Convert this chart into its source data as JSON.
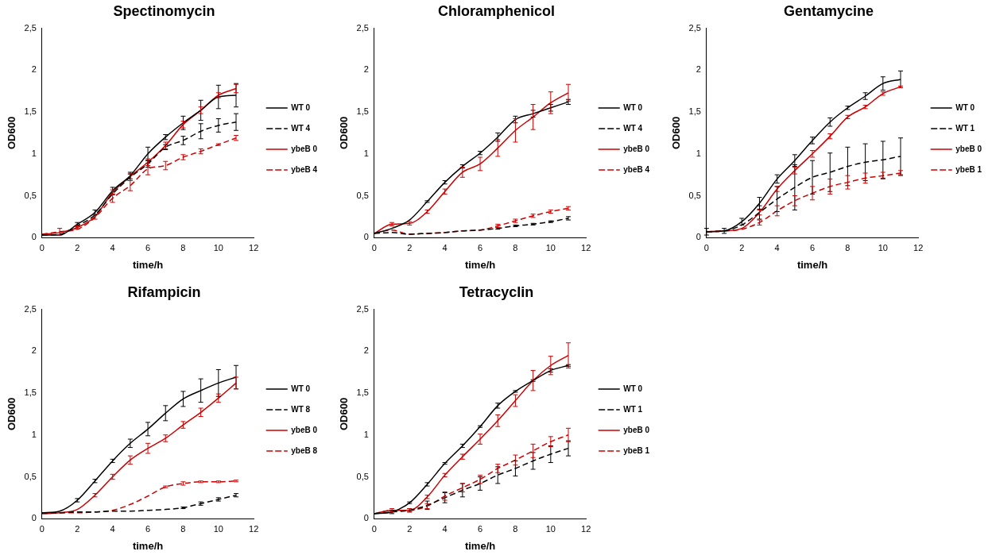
{
  "chart_data": [
    {
      "type": "line",
      "title": "Spectinomycin",
      "xlabel": "time/h",
      "ylabel": "OD600",
      "x": [
        0,
        1,
        2,
        3,
        4,
        5,
        6,
        7,
        8,
        9,
        10,
        11
      ],
      "xlim": [
        0,
        12
      ],
      "xticks": [
        0,
        2,
        4,
        6,
        8,
        10,
        12
      ],
      "ylim": [
        0,
        2.5
      ],
      "yticks": [
        0,
        {
          "value": 0.5,
          "label": "0,5"
        },
        1,
        {
          "value": 1.5,
          "label": "1,5"
        },
        2,
        {
          "value": 2.5,
          "label": "2,5"
        }
      ],
      "legend": "right",
      "grid": false,
      "series": [
        {
          "name": "WT 0",
          "color": "#000000",
          "line_style": "solid",
          "values": [
            0.03,
            0.03,
            0.16,
            0.3,
            0.56,
            0.74,
            1.0,
            1.2,
            1.37,
            1.52,
            1.68,
            1.7
          ],
          "errors": [
            null,
            null,
            0.02,
            0.03,
            0.04,
            0.04,
            0.08,
            0.03,
            0.08,
            0.12,
            0.14,
            0.14
          ]
        },
        {
          "name": "WT 4",
          "color": "#000000",
          "line_style": "dashed",
          "values": [
            0.03,
            0.04,
            0.14,
            0.27,
            0.52,
            0.72,
            0.88,
            1.08,
            1.16,
            1.27,
            1.34,
            1.38
          ],
          "errors": [
            null,
            null,
            null,
            null,
            null,
            0.04,
            0.04,
            0.03,
            0.05,
            0.09,
            0.08,
            0.1
          ]
        },
        {
          "name": "ybeB 0",
          "color": "#cc0000",
          "line_style": "solid",
          "values": [
            0.04,
            0.06,
            0.12,
            0.25,
            0.54,
            0.73,
            0.9,
            1.1,
            1.35,
            1.52,
            1.7,
            1.78
          ],
          "errors": [
            null,
            null,
            0.02,
            0.03,
            0.03,
            0.03,
            0.04,
            0.04,
            0.04,
            0.04,
            0.03,
            0.05
          ]
        },
        {
          "name": "ybeB 4",
          "color": "#cc0000",
          "line_style": "dashed",
          "values": [
            0.04,
            0.07,
            0.1,
            0.24,
            0.47,
            0.62,
            0.82,
            0.86,
            0.96,
            1.03,
            1.11,
            1.19
          ],
          "errors": [
            null,
            0.04,
            null,
            null,
            0.05,
            0.06,
            0.07,
            0.05,
            0.03,
            0.03,
            0.01,
            0.03
          ]
        }
      ]
    },
    {
      "type": "line",
      "title": "Chloramphenicol",
      "xlabel": "time/h",
      "ylabel": "OD600",
      "x": [
        0,
        1,
        2,
        3,
        4,
        5,
        6,
        7,
        8,
        9,
        10,
        11
      ],
      "xlim": [
        0,
        12
      ],
      "xticks": [
        0,
        2,
        4,
        6,
        8,
        10,
        12
      ],
      "ylim": [
        0,
        2.5
      ],
      "yticks": [
        0,
        {
          "value": 0.5,
          "label": "0,5"
        },
        1,
        {
          "value": 1.5,
          "label": "1,5"
        },
        2,
        {
          "value": 2.5,
          "label": "2,5"
        }
      ],
      "legend": "right",
      "grid": false,
      "series": [
        {
          "name": "WT 0",
          "color": "#000000",
          "line_style": "solid",
          "values": [
            0.05,
            0.11,
            0.21,
            0.43,
            0.66,
            0.85,
            1.01,
            1.2,
            1.41,
            1.48,
            1.55,
            1.62
          ],
          "errors": [
            null,
            null,
            null,
            0.01,
            0.02,
            0.02,
            0.02,
            0.05,
            0.04,
            0.04,
            0.04,
            0.03
          ]
        },
        {
          "name": "WT 4",
          "color": "#000000",
          "line_style": "dashed",
          "values": [
            0.05,
            0.06,
            0.04,
            0.05,
            0.06,
            0.08,
            0.09,
            0.11,
            0.14,
            0.16,
            0.19,
            0.23
          ],
          "errors": [
            null,
            null,
            null,
            null,
            null,
            null,
            null,
            0.01,
            0.01,
            0.01,
            0.01,
            0.02
          ]
        },
        {
          "name": "ybeB 0",
          "color": "#cc0000",
          "line_style": "solid",
          "values": [
            0.05,
            0.16,
            0.17,
            0.31,
            0.55,
            0.78,
            0.88,
            1.07,
            1.28,
            1.44,
            1.61,
            1.73
          ],
          "errors": [
            null,
            0.02,
            0.02,
            0.02,
            0.03,
            0.06,
            0.08,
            0.1,
            0.14,
            0.15,
            0.13,
            0.1
          ]
        },
        {
          "name": "ybeB 4",
          "color": "#cc0000",
          "line_style": "dashed",
          "values": [
            0.05,
            0.09,
            0.04,
            0.05,
            0.06,
            0.08,
            0.09,
            0.14,
            0.2,
            0.26,
            0.31,
            0.35
          ],
          "errors": [
            null,
            null,
            null,
            null,
            null,
            null,
            null,
            0.02,
            0.02,
            0.02,
            0.02,
            0.02
          ]
        }
      ]
    },
    {
      "type": "line",
      "title": "Gentamycine",
      "xlabel": "time/h",
      "ylabel": "OD600",
      "x": [
        0,
        1,
        2,
        3,
        4,
        5,
        6,
        7,
        8,
        9,
        10,
        11
      ],
      "xlim": [
        0,
        12
      ],
      "xticks": [
        0,
        2,
        4,
        6,
        8,
        10,
        12
      ],
      "ylim": [
        0,
        2.5
      ],
      "yticks": [
        0,
        {
          "value": 0.5,
          "label": "0,5"
        },
        1,
        {
          "value": 1.5,
          "label": "1,5"
        },
        2,
        {
          "value": 2.5,
          "label": "2,5"
        }
      ],
      "legend": "right",
      "grid": false,
      "series": [
        {
          "name": "WT 0",
          "color": "#000000",
          "line_style": "solid",
          "values": [
            0.07,
            0.08,
            0.19,
            0.41,
            0.7,
            0.92,
            1.16,
            1.38,
            1.55,
            1.69,
            1.84,
            1.89
          ],
          "errors": [
            0.04,
            0.03,
            0.04,
            0.07,
            0.05,
            0.07,
            0.04,
            0.05,
            0.02,
            0.04,
            0.08,
            0.1
          ]
        },
        {
          "name": "WT 1",
          "color": "#000000",
          "line_style": "dashed",
          "values": [
            0.07,
            0.08,
            0.15,
            0.3,
            0.46,
            0.6,
            0.72,
            0.78,
            0.85,
            0.9,
            0.93,
            0.97
          ],
          "errors": [
            null,
            null,
            null,
            0.08,
            0.15,
            0.27,
            0.2,
            0.23,
            0.23,
            0.22,
            0.22,
            0.22
          ]
        },
        {
          "name": "ybeB 0",
          "color": "#cc0000",
          "line_style": "solid",
          "values": [
            0.07,
            0.08,
            0.11,
            0.3,
            0.58,
            0.8,
            1.0,
            1.21,
            1.44,
            1.56,
            1.72,
            1.8
          ],
          "errors": [
            null,
            null,
            null,
            0.03,
            0.03,
            0.04,
            0.04,
            0.03,
            0.02,
            0.02,
            0.02,
            0.01
          ]
        },
        {
          "name": "ybeB 1",
          "color": "#cc0000",
          "line_style": "dashed",
          "values": [
            0.07,
            0.08,
            0.1,
            0.18,
            0.32,
            0.44,
            0.53,
            0.61,
            0.66,
            0.71,
            0.74,
            0.77
          ],
          "errors": [
            null,
            null,
            null,
            0.03,
            0.06,
            0.06,
            0.08,
            0.09,
            0.08,
            0.06,
            0.04,
            0.03
          ]
        }
      ]
    },
    {
      "type": "line",
      "title": "Rifampicin",
      "xlabel": "time/h",
      "ylabel": "OD600",
      "x": [
        0,
        1,
        2,
        3,
        4,
        5,
        6,
        7,
        8,
        9,
        10,
        11
      ],
      "xlim": [
        0,
        12
      ],
      "xticks": [
        0,
        2,
        4,
        6,
        8,
        10,
        12
      ],
      "ylim": [
        0,
        2.5
      ],
      "yticks": [
        0,
        {
          "value": 0.5,
          "label": "0,5"
        },
        1,
        {
          "value": 1.5,
          "label": "1,5"
        },
        2,
        {
          "value": 2.5,
          "label": "2,5"
        }
      ],
      "legend": "right",
      "grid": false,
      "series": [
        {
          "name": "WT 0",
          "color": "#000000",
          "line_style": "solid",
          "values": [
            0.07,
            0.09,
            0.22,
            0.45,
            0.69,
            0.9,
            1.07,
            1.26,
            1.43,
            1.53,
            1.62,
            1.69
          ],
          "errors": [
            null,
            null,
            0.02,
            0.02,
            0.02,
            0.05,
            0.08,
            0.09,
            0.09,
            0.14,
            0.16,
            0.14
          ]
        },
        {
          "name": "WT 8",
          "color": "#000000",
          "line_style": "dashed",
          "values": [
            0.07,
            0.07,
            0.08,
            0.08,
            0.09,
            0.09,
            0.1,
            0.11,
            0.13,
            0.18,
            0.23,
            0.28
          ],
          "errors": [
            null,
            null,
            null,
            null,
            null,
            null,
            null,
            null,
            0.01,
            0.02,
            0.02,
            0.02
          ]
        },
        {
          "name": "ybeB 0",
          "color": "#cc0000",
          "line_style": "solid",
          "values": [
            0.06,
            0.07,
            0.11,
            0.28,
            0.5,
            0.7,
            0.84,
            0.96,
            1.12,
            1.27,
            1.44,
            1.62
          ],
          "errors": [
            null,
            null,
            null,
            0.02,
            0.03,
            0.05,
            0.06,
            0.04,
            0.04,
            0.05,
            0.05,
            0.07
          ]
        },
        {
          "name": "ybeB 8",
          "color": "#cc0000",
          "line_style": "dashed",
          "values": [
            0.06,
            0.07,
            0.07,
            0.08,
            0.1,
            0.17,
            0.27,
            0.38,
            0.42,
            0.44,
            0.44,
            0.45
          ],
          "errors": [
            null,
            null,
            null,
            null,
            null,
            null,
            null,
            0.01,
            0.02,
            0.01,
            0.01,
            0.01
          ]
        }
      ]
    },
    {
      "type": "line",
      "title": "Tetracyclin",
      "xlabel": "time/h",
      "ylabel": "OD600",
      "x": [
        0,
        1,
        2,
        3,
        4,
        5,
        6,
        7,
        8,
        9,
        10,
        11
      ],
      "xlim": [
        0,
        12
      ],
      "xticks": [
        0,
        2,
        4,
        6,
        8,
        10,
        12
      ],
      "ylim": [
        0,
        2.5
      ],
      "yticks": [
        0,
        {
          "value": 0.5,
          "label": "0,5"
        },
        1,
        {
          "value": 1.5,
          "label": "1,5"
        },
        2,
        {
          "value": 2.5,
          "label": "2,5"
        }
      ],
      "legend": "right",
      "grid": false,
      "series": [
        {
          "name": "WT 0",
          "color": "#000000",
          "line_style": "solid",
          "values": [
            0.06,
            0.08,
            0.19,
            0.41,
            0.66,
            0.87,
            1.1,
            1.35,
            1.52,
            1.65,
            1.77,
            1.83
          ],
          "errors": [
            null,
            null,
            0.01,
            0.02,
            0.01,
            0.02,
            0.01,
            0.03,
            0.01,
            0.01,
            0.02,
            0.01
          ]
        },
        {
          "name": "WT 1",
          "color": "#000000",
          "line_style": "dashed",
          "values": [
            0.06,
            0.08,
            0.1,
            0.16,
            0.25,
            0.34,
            0.42,
            0.52,
            0.6,
            0.69,
            0.77,
            0.84
          ],
          "errors": [
            null,
            0.02,
            0.02,
            0.05,
            0.06,
            0.08,
            0.08,
            0.1,
            0.09,
            0.1,
            0.1,
            0.09
          ]
        },
        {
          "name": "ybeB 0",
          "color": "#cc0000",
          "line_style": "solid",
          "values": [
            0.06,
            0.1,
            0.1,
            0.26,
            0.52,
            0.74,
            0.95,
            1.17,
            1.41,
            1.65,
            1.83,
            1.95
          ],
          "errors": [
            null,
            null,
            null,
            0.02,
            0.02,
            0.03,
            0.06,
            0.07,
            0.07,
            0.12,
            0.11,
            0.15
          ]
        },
        {
          "name": "ybeB 1",
          "color": "#cc0000",
          "line_style": "dashed",
          "values": [
            0.06,
            0.1,
            0.1,
            0.15,
            0.27,
            0.37,
            0.47,
            0.6,
            0.7,
            0.81,
            0.92,
            1.0
          ],
          "errors": [
            null,
            0.02,
            0.02,
            0.03,
            0.05,
            0.05,
            0.05,
            0.05,
            0.06,
            0.08,
            0.06,
            0.08
          ]
        }
      ]
    }
  ]
}
